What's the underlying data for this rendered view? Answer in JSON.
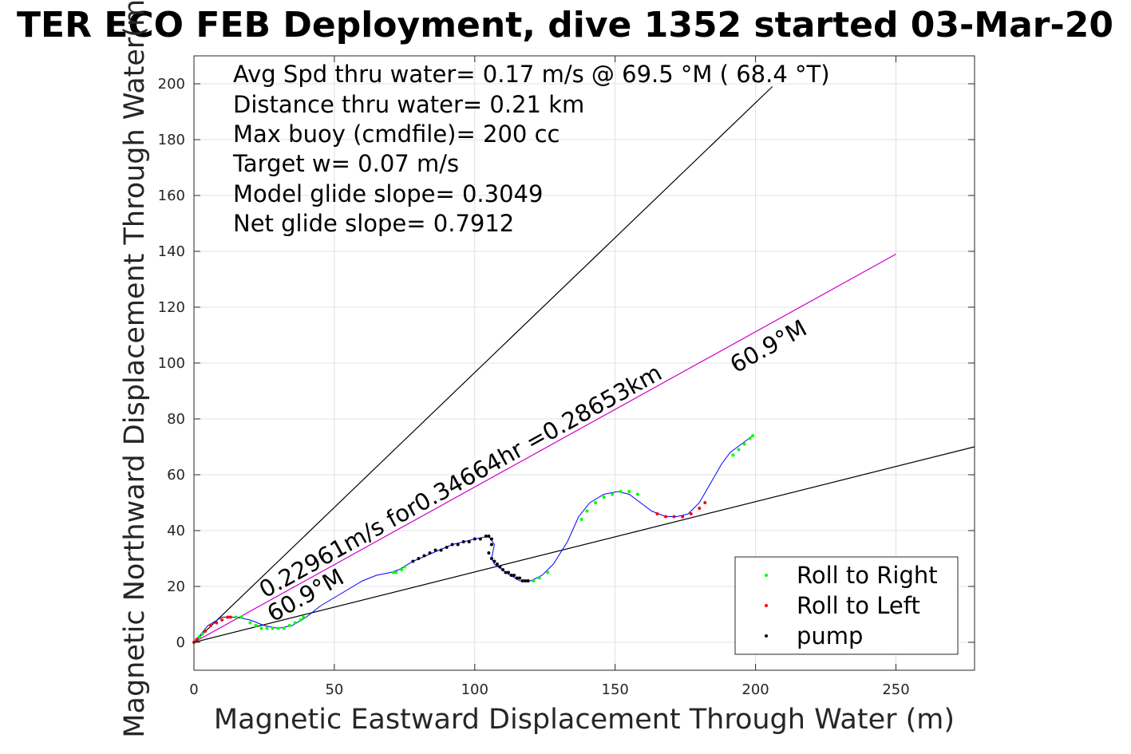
{
  "chart_data": {
    "type": "scatter",
    "title": "TER ECO FEB Deployment, dive 1352 started 03-Mar-20",
    "xlabel": "Magnetic Eastward Displacement Through Water (m)",
    "ylabel": "Magnetic Northward Displacement Through Water(m)",
    "xlim": [
      0,
      278
    ],
    "ylim": [
      -10,
      210
    ],
    "xticks": [
      0,
      50,
      100,
      150,
      200,
      250
    ],
    "yticks": [
      0,
      20,
      40,
      60,
      80,
      100,
      120,
      140,
      160,
      180,
      200
    ],
    "grid": true,
    "legend_position": "bottom-right",
    "annotations": [
      "Avg Spd thru water=  0.17 m/s @  69.5 °M ( 68.4 °T)",
      "Distance thru water=  0.21 km",
      "Max buoy (cmdfile)= 200 cc",
      "Target w= 0.07 m/s",
      "Model glide slope= 0.3049",
      "Net glide slope= 0.7912"
    ],
    "line_labels": {
      "speed": "0.22961m/s for0.34664hr =0.28653km",
      "heading_main": "60.9°M",
      "heading_low": "60.9°M"
    },
    "colors": {
      "track": "#0000ff",
      "roll_right": "#00ff00",
      "roll_left": "#ff0000",
      "pump": "#000000",
      "heading_line": "#cc00cc",
      "guide_lines": "#000000",
      "grid": "#e0e0e0"
    },
    "reference_lines": [
      {
        "name": "upper-guide",
        "x": [
          0,
          206
        ],
        "y": [
          0,
          199
        ]
      },
      {
        "name": "lower-guide",
        "x": [
          0,
          278
        ],
        "y": [
          0,
          70
        ]
      },
      {
        "name": "heading-line",
        "x": [
          0,
          250
        ],
        "y": [
          0,
          139
        ]
      }
    ],
    "series": [
      {
        "name": "track",
        "x": [
          0,
          5,
          10,
          15,
          20,
          25,
          30,
          35,
          40,
          45,
          50,
          55,
          60,
          65,
          70,
          73,
          78,
          85,
          92,
          100,
          105,
          107,
          106,
          107,
          111,
          116,
          120,
          124,
          128,
          133,
          137,
          141,
          146,
          151,
          155,
          159,
          163,
          168,
          172,
          176,
          180,
          184,
          188,
          191,
          195,
          199
        ],
        "y": [
          0,
          6,
          9,
          9,
          8,
          6,
          5,
          6,
          9,
          13,
          16,
          19,
          22,
          24,
          25,
          26,
          29,
          32,
          35,
          37,
          38,
          35,
          30,
          28,
          25,
          22,
          22,
          24,
          28,
          36,
          45,
          50,
          53,
          54,
          53,
          50,
          47,
          45,
          45,
          46,
          50,
          57,
          64,
          68,
          71,
          74
        ]
      },
      {
        "name": "Roll to Right",
        "x": [
          1,
          2,
          3,
          15,
          17,
          20,
          22,
          24,
          26,
          28,
          30,
          32,
          34,
          36,
          38,
          39,
          71,
          72,
          74,
          75,
          119,
          121,
          123,
          126,
          138,
          140,
          143,
          146,
          149,
          152,
          155,
          158,
          192,
          194,
          196,
          198,
          199
        ],
        "y": [
          1,
          2,
          3,
          9,
          9,
          7,
          6,
          5,
          5,
          5,
          5,
          5,
          6,
          7,
          8,
          9,
          25,
          25,
          26,
          27,
          22,
          22,
          23,
          25,
          44,
          47,
          50,
          52,
          53,
          54,
          54,
          53,
          67,
          69,
          71,
          73,
          74
        ]
      },
      {
        "name": "Roll to Left",
        "x": [
          0,
          1,
          4,
          6,
          8,
          10,
          12,
          13,
          118,
          165,
          168,
          171,
          174,
          177,
          180,
          182
        ],
        "y": [
          0,
          1,
          4,
          6,
          7,
          8,
          9,
          9,
          22,
          46,
          45,
          45,
          45,
          46,
          48,
          50
        ],
        "marker": "dot"
      },
      {
        "name": "pump",
        "x": [
          78,
          80,
          82,
          84,
          86,
          88,
          90,
          92,
          94,
          96,
          98,
          100,
          102,
          104,
          105,
          106,
          106,
          105,
          106,
          107,
          108,
          109,
          110,
          111,
          112,
          113,
          114,
          115,
          116,
          117,
          118,
          119
        ],
        "y": [
          29,
          30,
          31,
          32,
          33,
          33,
          34,
          35,
          35,
          36,
          36,
          37,
          37,
          38,
          38,
          37,
          35,
          32,
          30,
          29,
          28,
          27,
          26,
          25,
          25,
          24,
          24,
          23,
          23,
          22,
          22,
          22
        ]
      }
    ],
    "legend": [
      "Roll to Right",
      "Roll to Left",
      "pump"
    ]
  }
}
